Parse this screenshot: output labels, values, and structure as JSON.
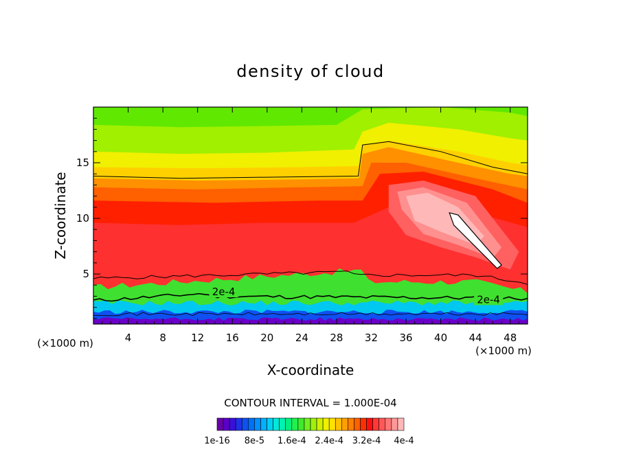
{
  "chart_data": {
    "type": "heatmap",
    "title": "density of cloud",
    "xlabel": "X-coordinate",
    "ylabel": "Z-coordinate",
    "x_unit_label": "(×1000 m)",
    "x_unit_label_right": "(×1000 m)",
    "xlim": [
      0,
      50
    ],
    "ylim": [
      0.5,
      20
    ],
    "xticks": [
      4,
      8,
      12,
      16,
      20,
      24,
      28,
      32,
      36,
      40,
      44,
      48
    ],
    "yticks": [
      5,
      10,
      15
    ],
    "contour_interval_text": "CONTOUR INTERVAL = 1.000E-04",
    "contour_labels": [
      {
        "text": "2e-4",
        "x": 15,
        "z": 3.4
      },
      {
        "text": "2e-4",
        "x": 45.5,
        "z": 2.7
      }
    ],
    "colorbar": {
      "labels": [
        "1e-16",
        "8e-5",
        "1.6e-4",
        "2.4e-4",
        "3.2e-4",
        "4e-4"
      ],
      "colors": [
        "#6a00a8",
        "#5a00c8",
        "#3a10d8",
        "#2030e8",
        "#1050f0",
        "#0070f8",
        "#0090ff",
        "#00b0ff",
        "#00d0f0",
        "#00e8d8",
        "#00f0b0",
        "#00f080",
        "#20f050",
        "#40e830",
        "#70f020",
        "#a0f010",
        "#d0f000",
        "#f0f000",
        "#ffe000",
        "#ffc000",
        "#ffa000",
        "#ff8000",
        "#ff6000",
        "#ff3000",
        "#ff1010",
        "#ff3838",
        "#ff5858",
        "#ff7878",
        "#ff9898",
        "#ffb8b8"
      ]
    },
    "field_colors": {
      "top": "#60e800",
      "upper": "#a0f000",
      "yellow": "#f0f000",
      "gold": "#ffd000",
      "orange": "#ff9000",
      "dorange": "#ff6000",
      "red": "#ff2000",
      "red2": "#ff3030",
      "pink1": "#ff6060",
      "pink2": "#ff9090",
      "pink3": "#ffb8b8",
      "core": "#ffffff",
      "cyan": "#00c8f0",
      "blue": "#1050f0",
      "purple": "#6a00c8",
      "green": "#40e030"
    }
  }
}
